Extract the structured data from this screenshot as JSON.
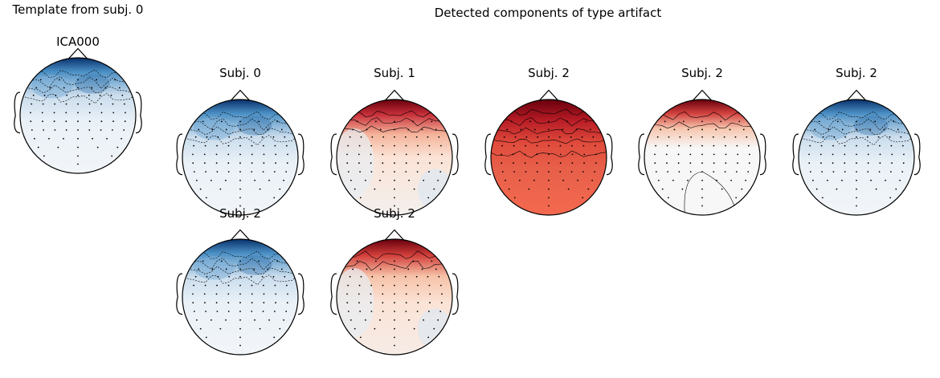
{
  "figure": {
    "left_title": "Template from subj. 0",
    "main_title": "Detected components of type artifact"
  },
  "template": {
    "label": "ICA000",
    "pattern": "blue"
  },
  "components": [
    {
      "label": "Subj. 0",
      "pattern": "blue"
    },
    {
      "label": "Subj. 1",
      "pattern": "red"
    },
    {
      "label": "Subj. 2",
      "pattern": "fullred"
    },
    {
      "label": "Subj. 2",
      "pattern": "redlight"
    },
    {
      "label": "Subj. 2",
      "pattern": "blue"
    },
    {
      "label": "Subj. 2",
      "pattern": "blue"
    },
    {
      "label": "Subj. 2",
      "pattern": "redpatchy"
    }
  ],
  "colors": {
    "blue_dark": "#08306b",
    "blue_mid": "#4a8fc4",
    "blue_light": "#eaf1f7",
    "red_dark": "#67000d",
    "red_mid": "#e8604a",
    "red_light": "#fbe3d6",
    "neutral": "#f7f7f7",
    "outline": "#000000"
  }
}
